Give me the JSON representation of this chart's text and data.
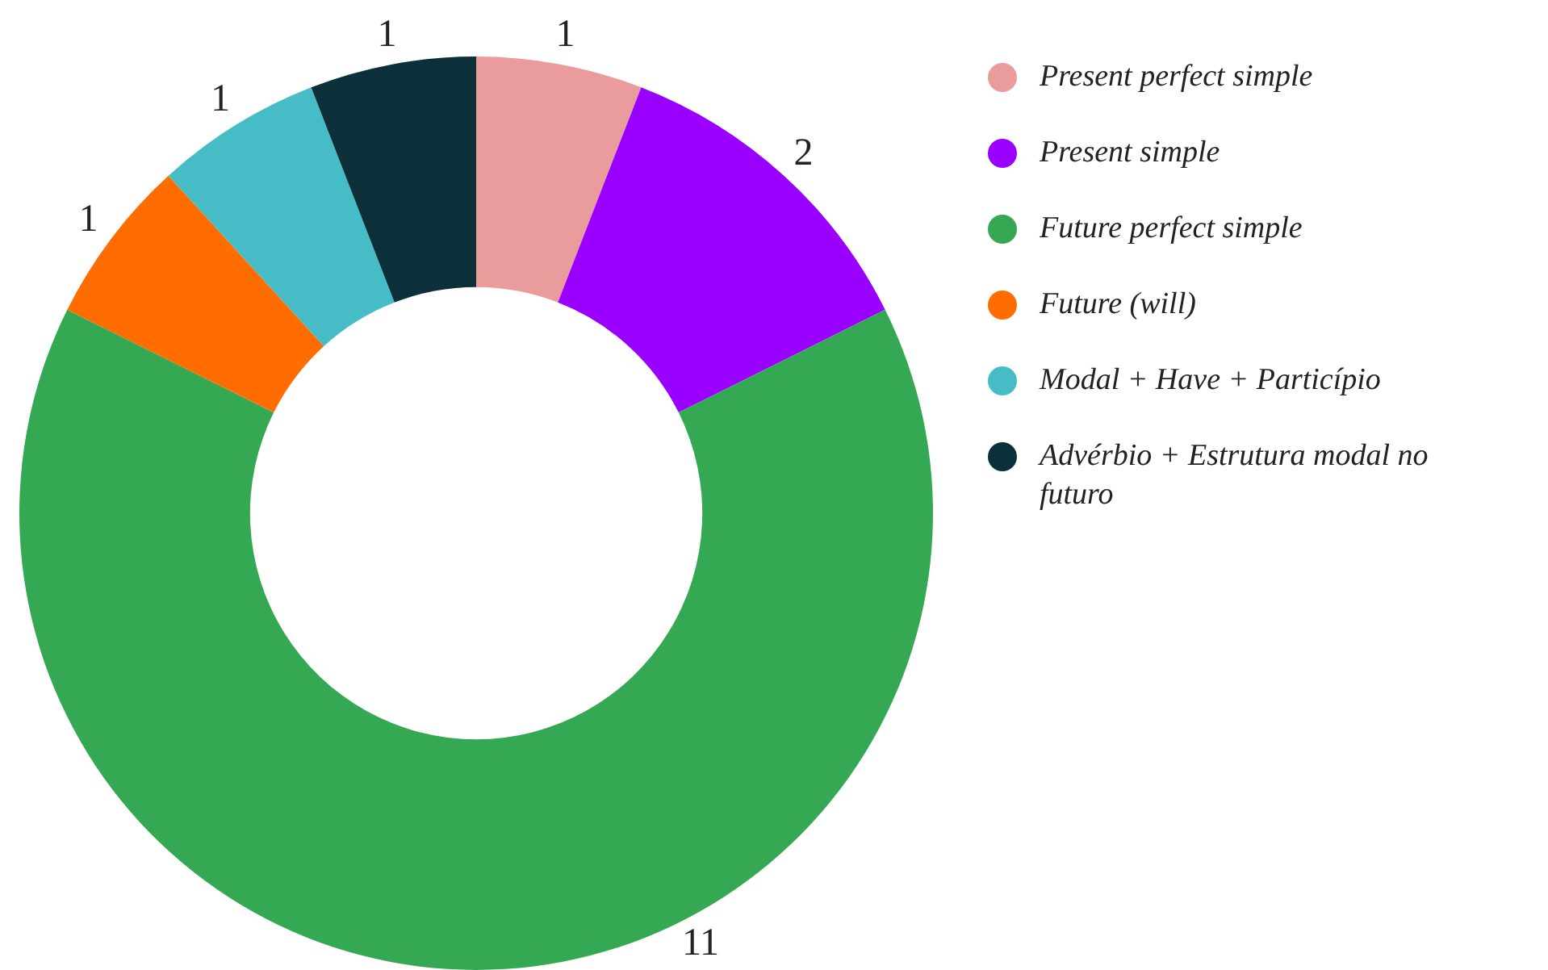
{
  "chart_data": {
    "type": "donut",
    "categories": [
      "Present perfect simple",
      "Present simple",
      "Future perfect simple",
      "Future (will)",
      "Modal + Have + Particípio",
      "Advérbio + Estrutura modal no futuro"
    ],
    "values": [
      1,
      2,
      11,
      1,
      1,
      1
    ],
    "colors": [
      "#e99c9b",
      "#9a00ff",
      "#35a853",
      "#ff6d00",
      "#46bdc6",
      "#0c3039"
    ],
    "data_labels": true,
    "legend": "right"
  }
}
